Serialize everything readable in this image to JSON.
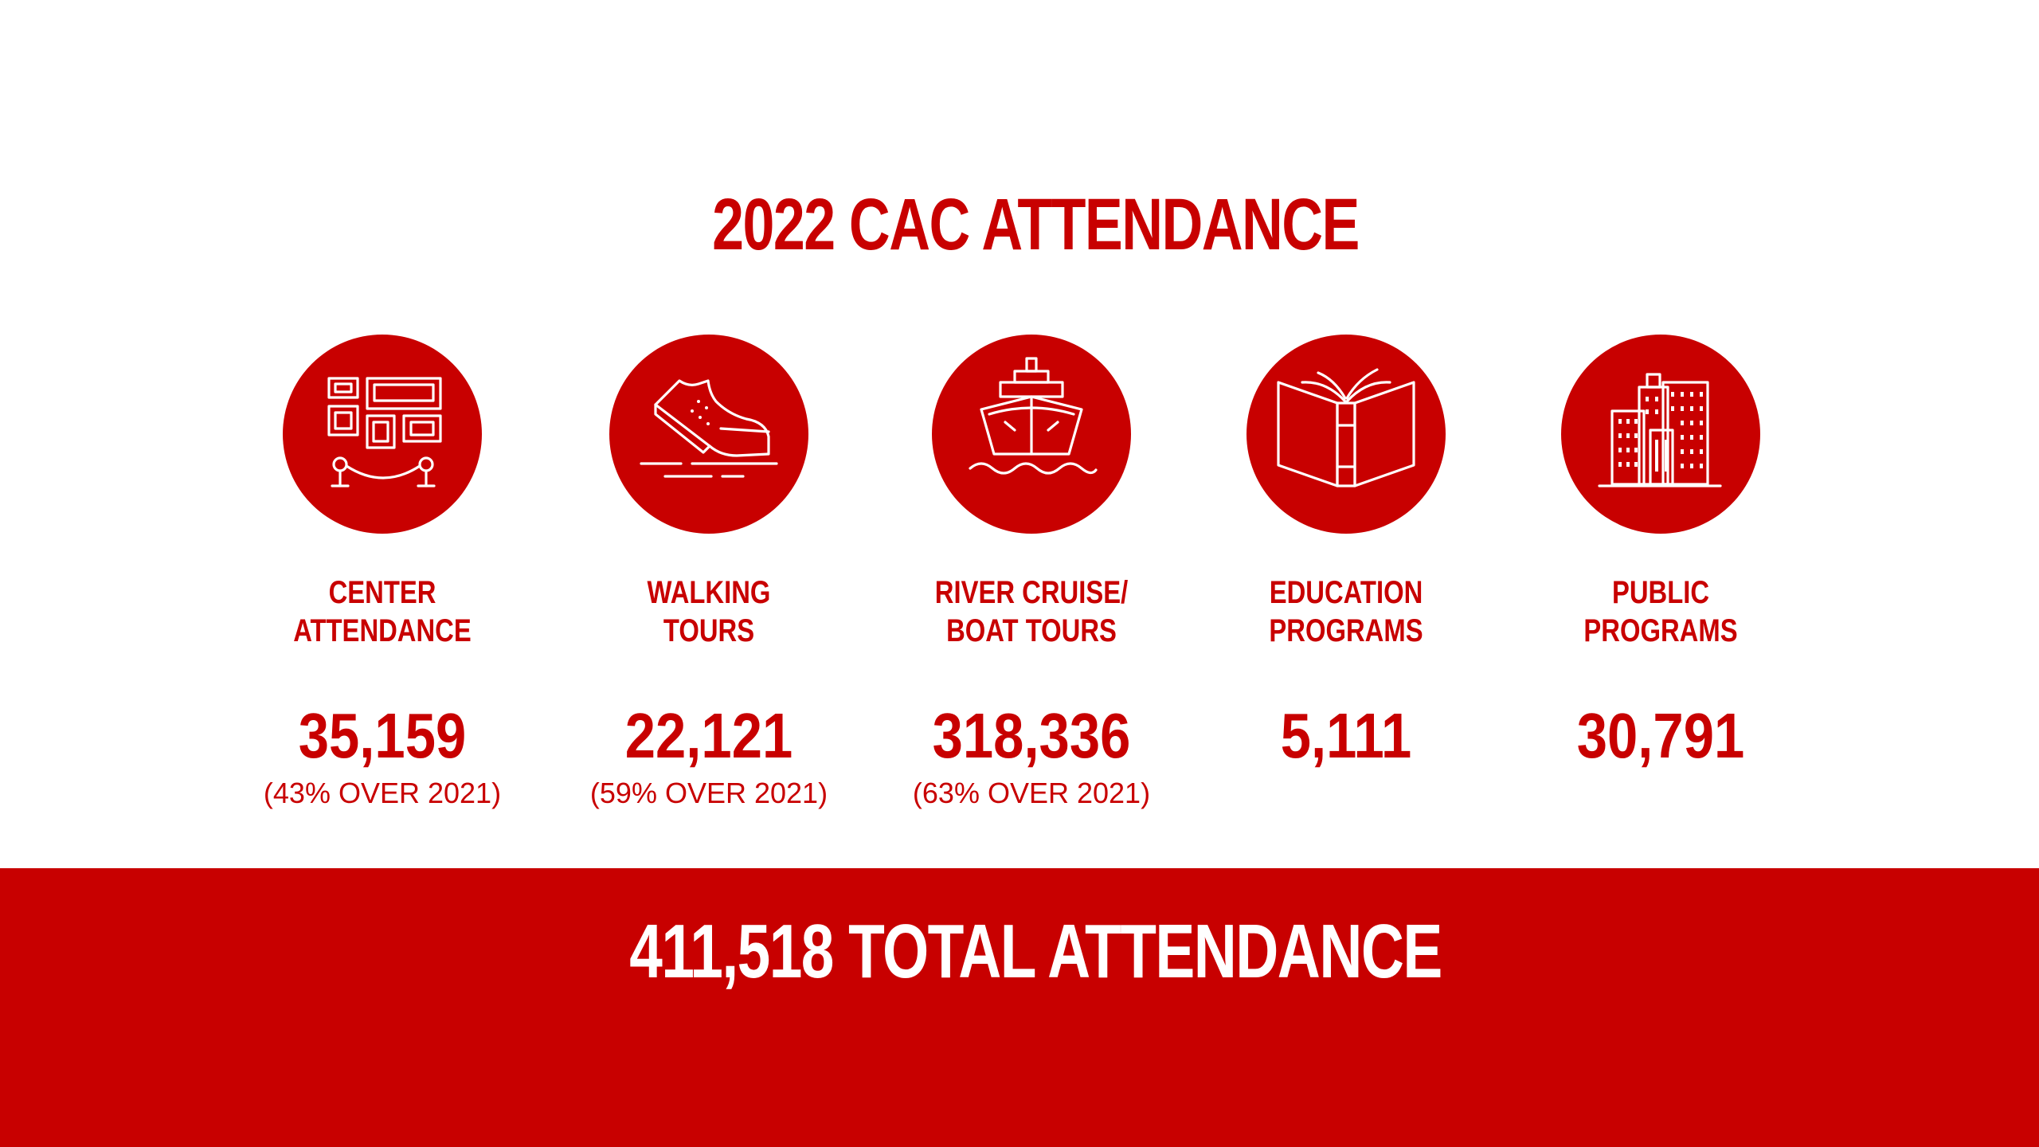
{
  "page": {
    "title": "2022 CAC ATTENDANCE",
    "accent_color": "#c80000",
    "background_color": "#ffffff"
  },
  "stats": [
    {
      "icon": "gallery-exhibit-icon",
      "label_line1": "CENTER",
      "label_line2": "ATTENDANCE",
      "value": "35,159",
      "growth": "(43% OVER 2021)"
    },
    {
      "icon": "walking-shoe-icon",
      "label_line1": "WALKING",
      "label_line2": "TOURS",
      "value": "22,121",
      "growth": "(59% OVER 2021)"
    },
    {
      "icon": "boat-icon",
      "label_line1": "RIVER CRUISE/",
      "label_line2": "BOAT TOURS",
      "value": "318,336",
      "growth": "(63% OVER 2021)"
    },
    {
      "icon": "open-book-icon",
      "label_line1": "EDUCATION",
      "label_line2": "PROGRAMS",
      "value": "5,111",
      "growth": ""
    },
    {
      "icon": "city-buildings-icon",
      "label_line1": "PUBLIC",
      "label_line2": "PROGRAMS",
      "value": "30,791",
      "growth": ""
    }
  ],
  "footer": {
    "total_text": "411,518 TOTAL ATTENDANCE"
  }
}
